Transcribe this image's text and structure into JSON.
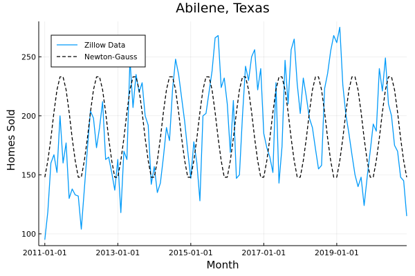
{
  "chart_data": {
    "type": "line",
    "title": "Abilene, Texas",
    "xlabel": "Month",
    "ylabel": "Homes Sold",
    "x_ticks": [
      "2011-01-01",
      "2013-01-01",
      "2015-01-01",
      "2017-01-01",
      "2019-01-01"
    ],
    "y_ticks": [
      100,
      150,
      200,
      250
    ],
    "xlim": [
      "2010-11-01",
      "2020-12-01"
    ],
    "ylim": [
      90,
      280
    ],
    "grid": true,
    "legend_position": "top-left",
    "start_month": "2011-01",
    "series": [
      {
        "name": "Zillow Data",
        "color": "#009AF9",
        "style": "solid",
        "values": [
          95,
          119,
          160,
          167,
          152,
          200,
          160,
          177,
          130,
          138,
          133,
          132,
          104,
          138,
          172,
          204,
          198,
          173,
          190,
          212,
          163,
          165,
          152,
          137,
          163,
          118,
          170,
          163,
          248,
          207,
          235,
          220,
          228,
          200,
          192,
          142,
          157,
          135,
          143,
          165,
          190,
          179,
          222,
          248,
          235,
          215,
          195,
          170,
          147,
          178,
          160,
          128,
          200,
          202,
          220,
          238,
          266,
          268,
          224,
          232,
          210,
          169,
          213,
          147,
          150,
          200,
          242,
          230,
          250,
          256,
          222,
          240,
          185,
          173,
          165,
          152,
          228,
          143,
          174,
          247,
          210,
          256,
          265,
          227,
          202,
          232,
          216,
          198,
          190,
          172,
          155,
          158,
          223,
          236,
          255,
          268,
          262,
          275,
          226,
          201,
          185,
          167,
          150,
          140,
          148,
          124,
          148,
          170,
          193,
          187,
          240,
          221,
          249,
          210,
          200,
          175,
          170,
          148,
          145,
          115
        ]
      },
      {
        "name": "Newton-Gauss",
        "color": "#000000",
        "style": "dashed",
        "values": [
          148,
          162,
          181,
          203,
          222,
          233,
          233,
          222,
          203,
          181,
          162,
          148,
          148,
          162,
          181,
          203,
          222,
          233,
          233,
          222,
          203,
          181,
          162,
          148,
          148,
          162,
          181,
          203,
          222,
          233,
          233,
          222,
          203,
          181,
          162,
          148,
          148,
          162,
          181,
          203,
          222,
          233,
          233,
          222,
          203,
          181,
          162,
          148,
          148,
          162,
          181,
          203,
          222,
          233,
          233,
          222,
          203,
          181,
          162,
          148,
          148,
          162,
          181,
          203,
          222,
          233,
          233,
          222,
          203,
          181,
          162,
          148,
          148,
          162,
          181,
          203,
          222,
          233,
          233,
          222,
          203,
          181,
          162,
          148,
          148,
          162,
          181,
          203,
          222,
          233,
          233,
          222,
          203,
          181,
          162,
          148,
          148,
          162,
          181,
          203,
          222,
          233,
          233,
          222,
          203,
          181,
          162,
          148,
          148,
          162,
          181,
          203,
          222,
          233,
          233,
          222,
          203,
          181,
          162,
          148
        ]
      }
    ]
  }
}
